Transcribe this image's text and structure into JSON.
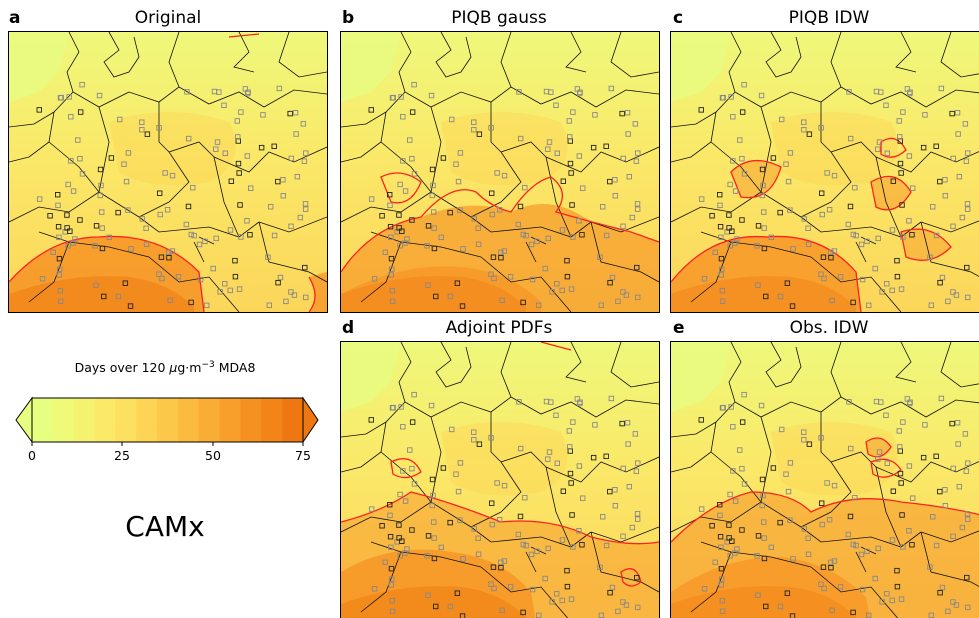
{
  "panels": [
    {
      "letter": "a",
      "title": "Original",
      "hot": "south"
    },
    {
      "letter": "b",
      "title": "PIQB gauss",
      "hot": "southwide"
    },
    {
      "letter": "c",
      "title": "PIQB IDW",
      "hot": "blobs"
    },
    {
      "letter": "d",
      "title": "Adjoint PDFs",
      "hot": "southwest"
    },
    {
      "letter": "e",
      "title": "Obs. IDW",
      "hot": "band"
    }
  ],
  "colorbar": {
    "title_prefix": "Days over 120 ",
    "title_mu": "μ",
    "title_mid": "g·m",
    "title_sup": "−3",
    "title_suffix": " MDA8",
    "ticks": [
      "0",
      "25",
      "50",
      "75"
    ],
    "vmin": 0,
    "vmax": 75,
    "extend": "both",
    "colors": [
      "#e6ff80",
      "#eefa78",
      "#f5f270",
      "#fbe968",
      "#fde05f",
      "#fdd455",
      "#fcc84a",
      "#fbbb3f",
      "#f9ad34",
      "#f79f2a",
      "#f59121",
      "#f28418",
      "#ee7712"
    ]
  },
  "model_label": "CAMx",
  "chart_data": [
    {
      "type": "heatmap",
      "title": "Original",
      "colorbar_range": [
        0,
        75
      ],
      "contour_color": "#ff2020"
    },
    {
      "type": "heatmap",
      "title": "PIQB gauss",
      "colorbar_range": [
        0,
        75
      ],
      "contour_color": "#ff2020"
    },
    {
      "type": "heatmap",
      "title": "PIQB IDW",
      "colorbar_range": [
        0,
        75
      ],
      "contour_color": "#ff2020"
    },
    {
      "type": "heatmap",
      "title": "Adjoint PDFs",
      "colorbar_range": [
        0,
        75
      ],
      "contour_color": "#ff2020"
    },
    {
      "type": "heatmap",
      "title": "Obs. IDW",
      "colorbar_range": [
        0,
        75
      ],
      "contour_color": "#ff2020"
    }
  ]
}
